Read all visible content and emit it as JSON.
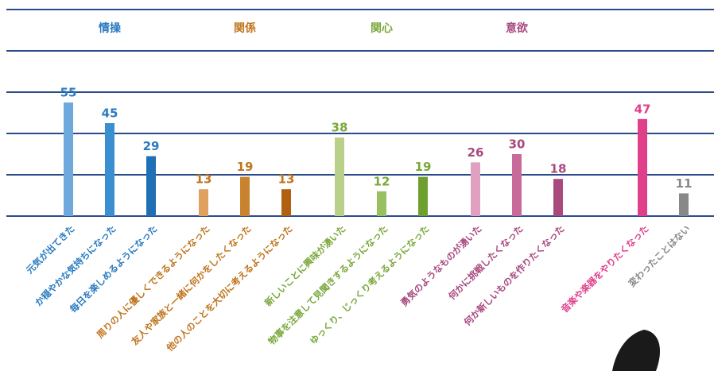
{
  "chart_data": {
    "type": "bar",
    "groups": [
      {
        "label": "情操",
        "color": "#2a7ac0"
      },
      {
        "label": "関係",
        "color": "#c0751e"
      },
      {
        "label": "関心",
        "color": "#7aa83a"
      },
      {
        "label": "意欲",
        "color": "#a8487e"
      }
    ],
    "categories": [
      "元気が出てきた",
      "か穏やかな気持ちになった",
      "毎日を楽しめるようになった",
      "周りの人に優しくできるようになった",
      "友人や家族と一緒に何かをしたくなった",
      "他の人のことを大切に考えるようになった",
      "新しいことに興味が湧いた",
      "物事を注意して見聞きするようになった",
      "ゆっくり、じっくり考えるようになった",
      "勇気のようなものが湧いた",
      "何かに挑戦したくなった",
      "何か新しいものを作りたくなった",
      "音楽や楽器をやりたくなった",
      "変わったことはない"
    ],
    "values": [
      55,
      45,
      29,
      13,
      19,
      13,
      38,
      12,
      19,
      26,
      30,
      18,
      47,
      11
    ],
    "colors": [
      "#6fa8dc",
      "#3b8ed0",
      "#1f6fb5",
      "#e0a060",
      "#c9822e",
      "#b06010",
      "#b8d08a",
      "#98c060",
      "#6ea030",
      "#e0a0c0",
      "#c86a9a",
      "#a84a7e",
      "#e0408a",
      "#888888"
    ],
    "label_colors": [
      "#2a7ac0",
      "#2a7ac0",
      "#2a7ac0",
      "#c0751e",
      "#c0751e",
      "#c0751e",
      "#7aa83a",
      "#7aa83a",
      "#7aa83a",
      "#a8487e",
      "#a8487e",
      "#a8487e",
      "#e0408a",
      "#888888"
    ],
    "ylim": [
      0,
      100
    ],
    "yticks": [
      0,
      20,
      40,
      60,
      80,
      100
    ],
    "grid": true
  }
}
